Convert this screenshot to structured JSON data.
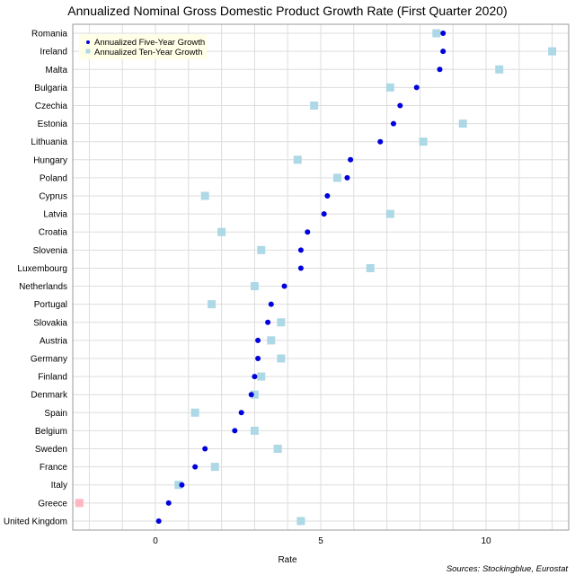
{
  "chart_data": {
    "type": "scatter",
    "title": "Annualized Nominal Gross Domestic Product Growth Rate (First Quarter 2020)",
    "xlabel": "Rate",
    "ylabel": "",
    "xlim": [
      -2.5,
      12.5
    ],
    "xticks": [
      0,
      5,
      10
    ],
    "grid": true,
    "legend_position": "top-left",
    "source": "Sources: Stockingblue, Eurostat",
    "categories": [
      "Romania",
      "Ireland",
      "Malta",
      "Bulgaria",
      "Czechia",
      "Estonia",
      "Lithuania",
      "Hungary",
      "Poland",
      "Cyprus",
      "Latvia",
      "Croatia",
      "Slovenia",
      "Luxembourg",
      "Netherlands",
      "Portugal",
      "Slovakia",
      "Austria",
      "Germany",
      "Finland",
      "Denmark",
      "Spain",
      "Belgium",
      "Sweden",
      "France",
      "Italy",
      "Greece",
      "United Kingdom"
    ],
    "series": [
      {
        "name": "Annualized Five-Year Growth",
        "marker": "circle",
        "color": "#0000dd",
        "values": [
          8.7,
          8.7,
          8.6,
          7.9,
          7.4,
          7.2,
          6.8,
          5.9,
          5.8,
          5.2,
          5.1,
          4.6,
          4.4,
          4.4,
          3.9,
          3.5,
          3.4,
          3.1,
          3.1,
          3.0,
          2.9,
          2.6,
          2.4,
          1.5,
          1.2,
          0.8,
          0.4,
          0.1
        ]
      },
      {
        "name": "Annualized Ten-Year Growth",
        "marker": "square",
        "color": "#add8e6",
        "negative_color": "#ffb6c1",
        "values": [
          8.5,
          12.0,
          10.4,
          7.1,
          4.8,
          9.3,
          8.1,
          4.3,
          5.5,
          1.5,
          7.1,
          2.0,
          3.2,
          6.5,
          3.0,
          1.7,
          3.8,
          3.5,
          3.8,
          3.2,
          3.0,
          1.2,
          3.0,
          3.7,
          1.8,
          0.7,
          -2.3,
          4.4
        ]
      }
    ]
  }
}
